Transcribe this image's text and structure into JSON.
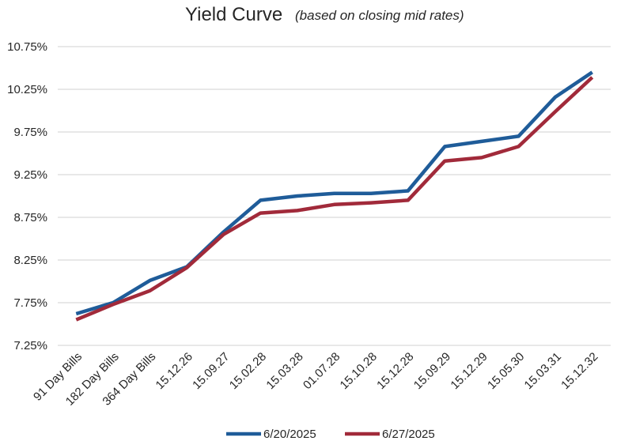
{
  "chart_data": {
    "type": "line",
    "title": "Yield Curve",
    "subtitle": "(based on closing mid rates)",
    "xlabel": "",
    "ylabel": "",
    "categories": [
      "91 Day Bills",
      "182 Day Bills",
      "364 Day Bills",
      "15.12.26",
      "15.09.27",
      "15.02.28",
      "15.03.28",
      "01.07.28",
      "15.10.28",
      "15.12.28",
      "15.09.29",
      "15.12.29",
      "15.05.30",
      "15.03.31",
      "15.12.32"
    ],
    "y_ticks": [
      "7.25%",
      "7.75%",
      "8.25%",
      "8.75%",
      "9.25%",
      "9.75%",
      "10.25%",
      "10.75%"
    ],
    "ylim": [
      7.25,
      10.75
    ],
    "grid": true,
    "legend_position": "bottom",
    "series": [
      {
        "name": "6/20/2025",
        "color": "#1F5C99",
        "values": [
          7.62,
          7.75,
          8.01,
          8.17,
          8.58,
          8.95,
          9.0,
          9.03,
          9.03,
          9.06,
          9.58,
          9.64,
          9.7,
          10.16,
          10.45
        ]
      },
      {
        "name": "6/27/2025",
        "color": "#A12A3A",
        "values": [
          7.55,
          7.73,
          7.89,
          8.16,
          8.55,
          8.8,
          8.83,
          8.9,
          8.92,
          8.95,
          9.41,
          9.45,
          9.58,
          9.99,
          10.39
        ]
      }
    ]
  }
}
